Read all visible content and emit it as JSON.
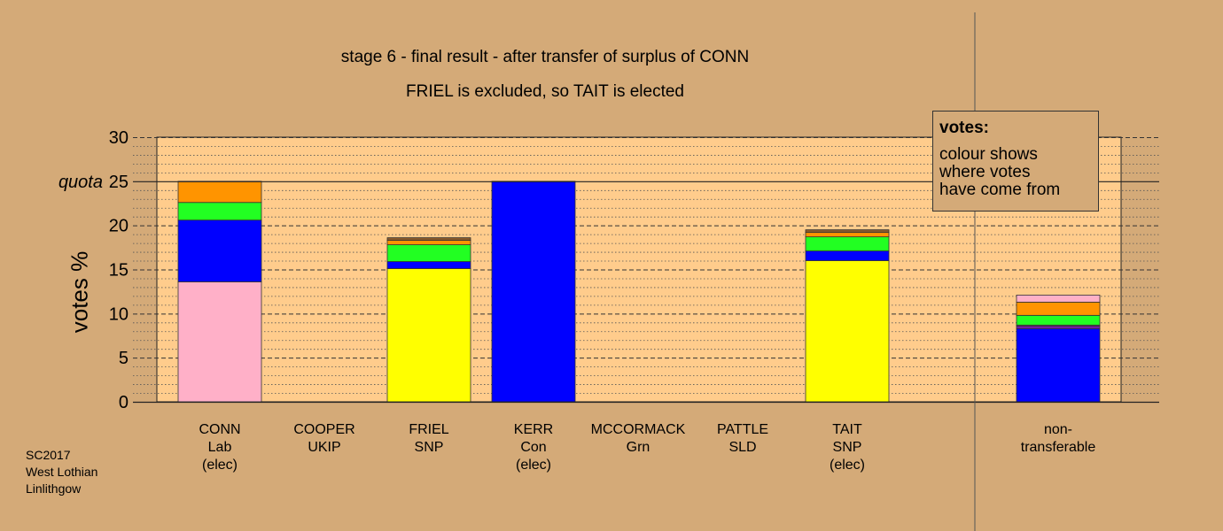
{
  "title": {
    "line1": "stage 6 - final result - after transfer of surplus of CONN",
    "line2": "FRIEL is excluded, so TAIT is elected"
  },
  "legend": {
    "title": "votes:",
    "lines": [
      "colour shows",
      "where votes",
      "have come from"
    ]
  },
  "footer": [
    "SC2017",
    "West Lothian",
    "Linlithgow"
  ],
  "colors": {
    "background": "#d4aa78",
    "plot_bg": "#ffcc8c",
    "pink": "#ffb0c8",
    "blue": "#0000ff",
    "green": "#22ff22",
    "orange": "#ff9400",
    "yellow": "#ffff00",
    "purple": "#7a1aa8",
    "grey": "#909090",
    "brown": "#8a5a2a"
  },
  "chart_data": {
    "type": "bar",
    "stacked": true,
    "ylabel": "votes %",
    "ylim": [
      0,
      30
    ],
    "yticks": [
      0,
      5,
      10,
      15,
      20,
      25,
      30
    ],
    "quota": {
      "value": 25,
      "label": "quota"
    },
    "grid": true,
    "legend_position": "top-right",
    "categories": [
      {
        "name": "CONN",
        "party": "Lab",
        "note": "(elec)"
      },
      {
        "name": "COOPER",
        "party": "UKIP",
        "note": ""
      },
      {
        "name": "FRIEL",
        "party": "SNP",
        "note": ""
      },
      {
        "name": "KERR",
        "party": "Con",
        "note": "(elec)"
      },
      {
        "name": "MCCORMACK",
        "party": "Grn",
        "note": ""
      },
      {
        "name": "PATTLE",
        "party": "SLD",
        "note": ""
      },
      {
        "name": "TAIT",
        "party": "SNP",
        "note": "(elec)"
      },
      {
        "name": "non-",
        "party": "transferable",
        "note": ""
      }
    ],
    "bars": [
      {
        "category": "CONN",
        "segments": [
          {
            "color": "pink",
            "value": 13.6
          },
          {
            "color": "blue",
            "value": 7.0
          },
          {
            "color": "green",
            "value": 2.0
          },
          {
            "color": "orange",
            "value": 2.4
          }
        ]
      },
      {
        "category": "COOPER",
        "segments": []
      },
      {
        "category": "FRIEL",
        "segments": [
          {
            "color": "yellow",
            "value": 15.1
          },
          {
            "color": "blue",
            "value": 0.8
          },
          {
            "color": "green",
            "value": 1.9
          },
          {
            "color": "orange",
            "value": 0.5
          },
          {
            "color": "brown",
            "value": 0.3
          }
        ]
      },
      {
        "category": "KERR",
        "segments": [
          {
            "color": "blue",
            "value": 25.0
          }
        ]
      },
      {
        "category": "MCCORMACK",
        "segments": []
      },
      {
        "category": "PATTLE",
        "segments": []
      },
      {
        "category": "TAIT",
        "segments": [
          {
            "color": "yellow",
            "value": 16.0
          },
          {
            "color": "blue",
            "value": 1.1
          },
          {
            "color": "green",
            "value": 1.6
          },
          {
            "color": "orange",
            "value": 0.5
          },
          {
            "color": "brown",
            "value": 0.3
          }
        ]
      },
      {
        "category": "non-",
        "segments": [
          {
            "color": "blue",
            "value": 8.3
          },
          {
            "color": "purple",
            "value": 0.3
          },
          {
            "color": "grey",
            "value": 0.1
          },
          {
            "color": "green",
            "value": 1.1
          },
          {
            "color": "orange",
            "value": 1.5
          },
          {
            "color": "pink",
            "value": 0.8
          }
        ]
      }
    ]
  }
}
